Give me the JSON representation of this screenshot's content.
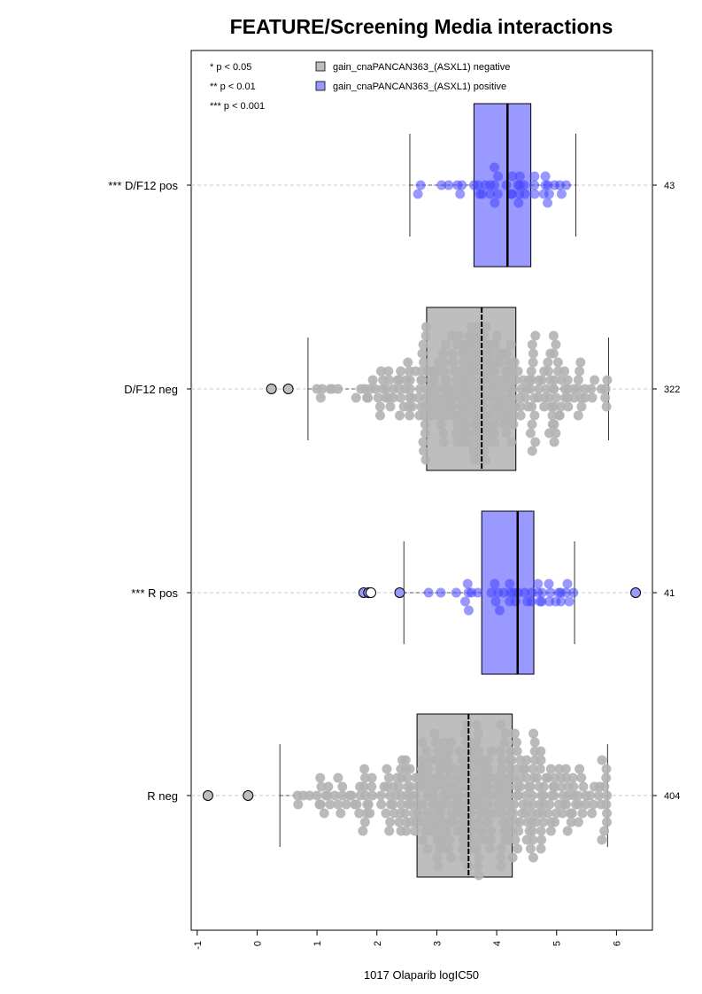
{
  "chart_data": {
    "type": "box",
    "title": "FEATURE/Screening Media interactions",
    "xlabel": "1017 Olaparib logIC50",
    "ylabel": "",
    "xlim": [
      -1.1,
      6.6
    ],
    "xticks": [
      "-1",
      "0",
      "1",
      "2",
      "3",
      "4",
      "5",
      "6"
    ],
    "grid": "dashed horizontal guide per category",
    "legend": {
      "placement": "top-left",
      "significance": [
        "* p < 0.05",
        "** p < 0.01",
        "*** p < 0.001"
      ],
      "entries": [
        {
          "label": "gain_cnaPANCAN363_(ASXL1) negative",
          "color": "#bebebe"
        },
        {
          "label": "gain_cnaPANCAN363_(ASXL1) positive",
          "color": "#9999ff"
        }
      ]
    },
    "categories": [
      {
        "label": "*** D/F12 pos",
        "count": "43",
        "group": "positive",
        "whisker_low": 2.55,
        "q1": 3.62,
        "median": 4.18,
        "q3": 4.57,
        "whisker_high": 5.32,
        "outliers": []
      },
      {
        "label": "D/F12 neg",
        "count": "322",
        "group": "negative",
        "whisker_low": 0.85,
        "q1": 2.83,
        "median": 3.75,
        "q3": 4.32,
        "whisker_high": 5.87,
        "outliers": [
          0.24,
          0.52
        ]
      },
      {
        "label": "*** R pos",
        "count": "41",
        "group": "positive",
        "whisker_low": 2.45,
        "q1": 3.75,
        "median": 4.35,
        "q3": 4.62,
        "whisker_high": 5.3,
        "outliers": [
          1.78,
          1.86,
          1.9,
          2.38,
          6.32
        ]
      },
      {
        "label": "R neg",
        "count": "404",
        "group": "negative",
        "whisker_low": 0.38,
        "q1": 2.67,
        "median": 3.53,
        "q3": 4.26,
        "whisker_high": 5.85,
        "outliers": [
          -0.82,
          -0.15
        ]
      }
    ],
    "colors": {
      "negative_fill": "#bebebe",
      "negative_points": "#b3b3b3",
      "positive_fill": "#9999ff",
      "positive_points": "#4444ff"
    }
  }
}
